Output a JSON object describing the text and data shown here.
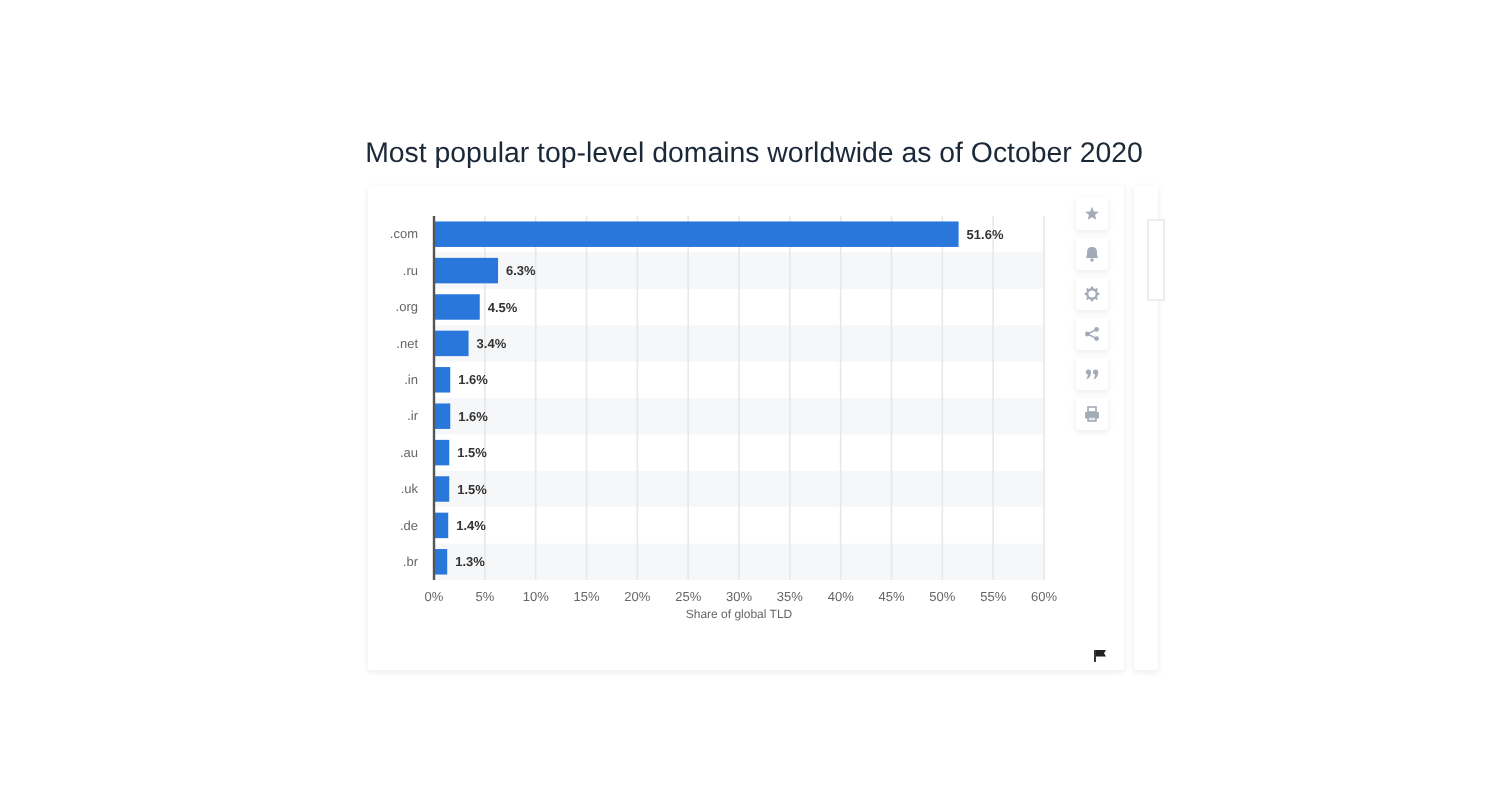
{
  "chart_data": {
    "type": "bar",
    "orientation": "horizontal",
    "title": "Most popular top-level domains worldwide as of October 2020",
    "xlabel": "Share of global TLD",
    "categories": [
      ".com",
      ".ru",
      ".org",
      ".net",
      ".in",
      ".ir",
      ".au",
      ".uk",
      ".de",
      ".br"
    ],
    "values": [
      51.6,
      6.3,
      4.5,
      3.4,
      1.6,
      1.6,
      1.5,
      1.5,
      1.4,
      1.3
    ],
    "value_labels": [
      "51.6%",
      "6.3%",
      "4.5%",
      "3.4%",
      "1.6%",
      "1.6%",
      "1.5%",
      "1.5%",
      "1.4%",
      "1.3%"
    ],
    "color": "#2a77dc",
    "xlim": [
      0,
      60
    ],
    "xticks": [
      {
        "value": 0,
        "label": "0%"
      },
      {
        "value": 5,
        "label": "5%"
      },
      {
        "value": 10,
        "label": "10%"
      },
      {
        "value": 15,
        "label": "15%"
      },
      {
        "value": 20,
        "label": "20%"
      },
      {
        "value": 25,
        "label": "25%"
      },
      {
        "value": 30,
        "label": "30%"
      },
      {
        "value": 35,
        "label": "35%"
      },
      {
        "value": 40,
        "label": "40%"
      },
      {
        "value": 45,
        "label": "45%"
      },
      {
        "value": 50,
        "label": "50%"
      },
      {
        "value": 55,
        "label": "55%"
      },
      {
        "value": 60,
        "label": "60%"
      }
    ],
    "grid": "x"
  }
}
